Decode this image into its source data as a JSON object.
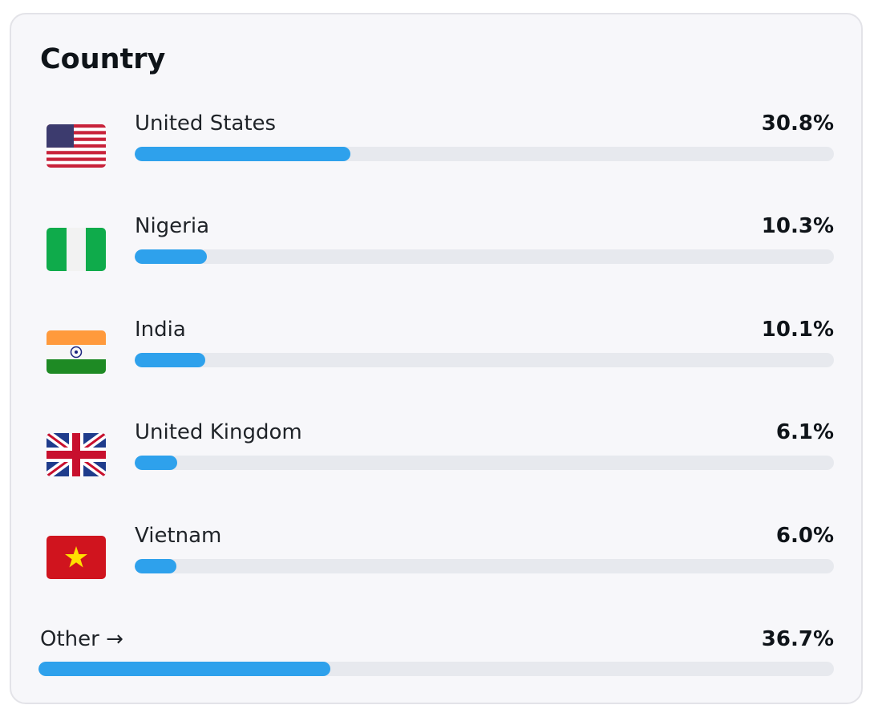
{
  "chart_data": {
    "type": "bar",
    "orientation": "horizontal",
    "title": "Country",
    "categories": [
      "United States",
      "Nigeria",
      "India",
      "United Kingdom",
      "Vietnam",
      "Other →"
    ],
    "values": [
      30.8,
      10.3,
      10.1,
      6.1,
      6.0,
      36.7
    ],
    "value_labels": [
      "30.8%",
      "10.3%",
      "10.1%",
      "6.1%",
      "6.0%",
      "36.7%"
    ],
    "xlim": [
      0,
      100
    ],
    "color": "#2ea1ec",
    "track_color": "#e7e9ee"
  }
}
